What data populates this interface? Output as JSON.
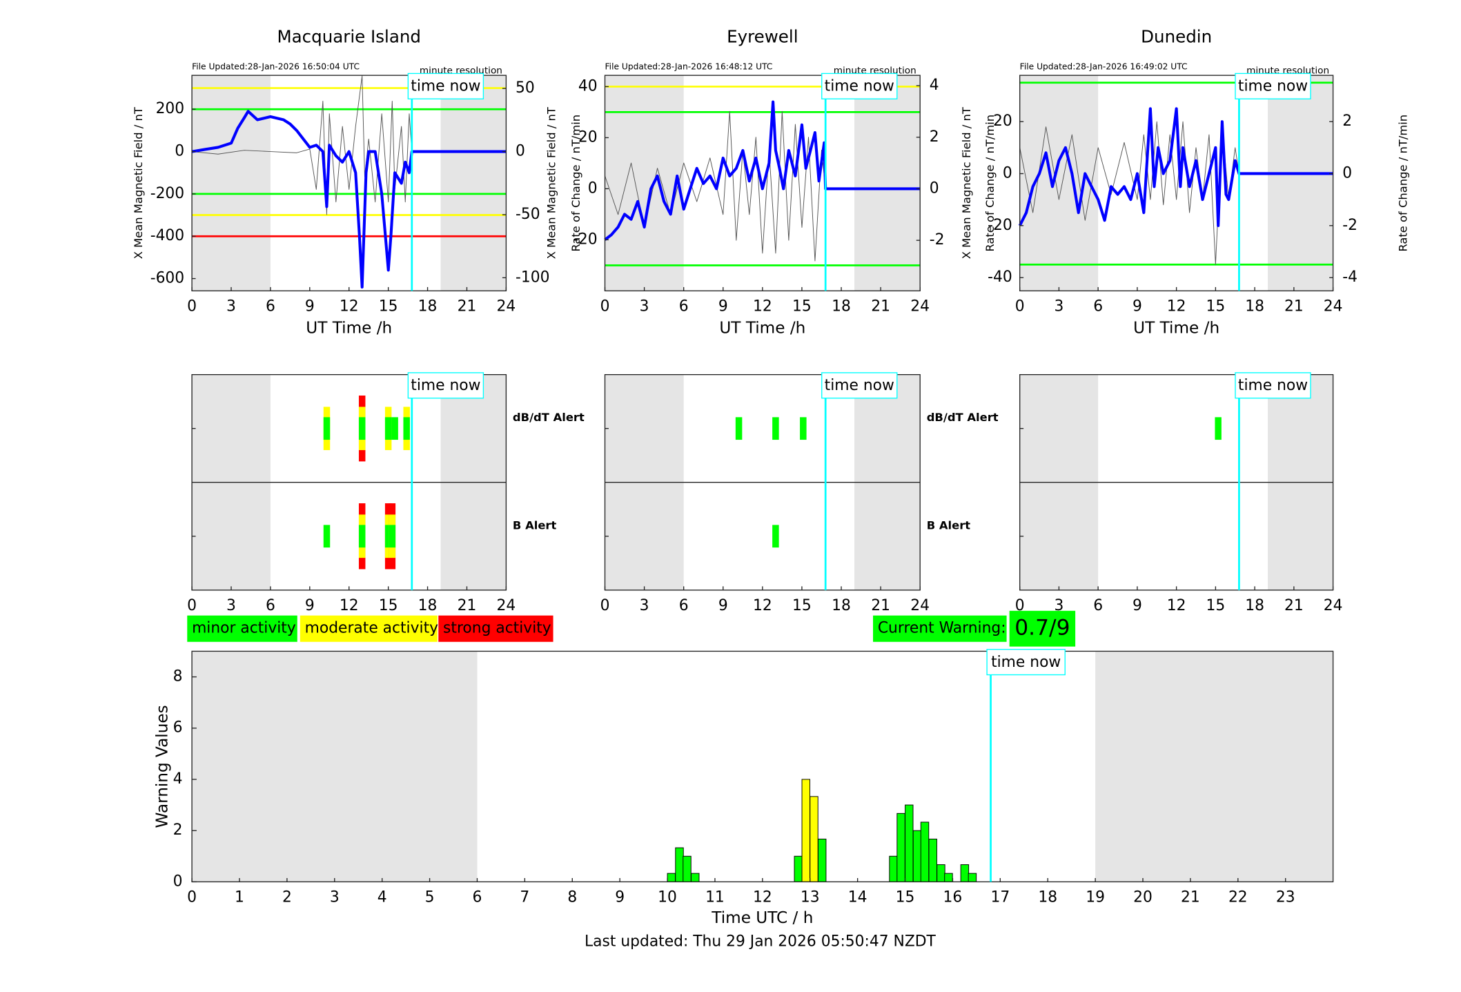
{
  "chart_data": [
    {
      "type": "line",
      "title": "Macquarie Island",
      "file_updated": "File Updated:28-Jan-2026 16:50:04 UTC",
      "resolution": "minute resolution",
      "xlabel": "UT Time /h",
      "ylabel": "X Mean Magnetic Field / nT",
      "y2label": "Rate of Change / nT/min",
      "xlim": [
        0,
        24
      ],
      "xticks": [
        0,
        3,
        6,
        9,
        12,
        15,
        18,
        21,
        24
      ],
      "ylim": [
        -658,
        360
      ],
      "yticks": [
        -600,
        -400,
        -200,
        0,
        200
      ],
      "y2lim": [
        -110.4,
        60.4
      ],
      "y2ticks": [
        -100,
        -50,
        0,
        50
      ],
      "shade": [
        [
          0,
          6
        ],
        [
          19,
          24
        ]
      ],
      "time_now": 16.8,
      "time_now_label": "time now",
      "thresholds": [
        {
          "value": 300,
          "color": "#ffff00"
        },
        {
          "value": -300,
          "color": "#ffff00"
        },
        {
          "value": 200,
          "color": "#00ff00"
        },
        {
          "value": -200,
          "color": "#00ff00"
        },
        {
          "value": -400,
          "color": "#ff0000"
        }
      ],
      "series": [
        {
          "axis": "y2",
          "color": "#555555",
          "x": [
            0,
            2,
            4,
            6,
            8,
            9,
            9.5,
            10,
            10.3,
            10.5,
            11,
            11.5,
            12,
            12.5,
            13,
            13.2,
            13.5,
            14,
            14.5,
            15,
            15.3,
            15.5,
            16,
            16.3,
            16.6,
            16.8
          ],
          "values": [
            0,
            -2,
            1,
            0,
            -1,
            2,
            -30,
            40,
            -50,
            30,
            -40,
            20,
            -30,
            20,
            60,
            -20,
            10,
            -40,
            30,
            -40,
            40,
            -30,
            20,
            -40,
            30,
            0
          ]
        },
        {
          "axis": "y",
          "color": "#0000ff",
          "x": [
            0,
            1,
            2,
            3,
            3.5,
            4,
            4.3,
            5,
            6,
            7,
            7.5,
            8,
            9,
            9.5,
            10,
            10.3,
            10.5,
            11,
            11.5,
            12,
            12.5,
            12.8,
            13,
            13.3,
            13.5,
            14,
            14.5,
            15,
            15.2,
            15.5,
            16,
            16.3,
            16.6,
            16.8,
            24
          ],
          "values": [
            0,
            10,
            20,
            40,
            110,
            160,
            190,
            150,
            165,
            150,
            130,
            100,
            20,
            30,
            0,
            -260,
            30,
            -20,
            -50,
            0,
            -100,
            -400,
            -640,
            -100,
            0,
            0,
            -200,
            -560,
            -400,
            -100,
            -150,
            -50,
            -100,
            0,
            0
          ]
        }
      ]
    },
    {
      "type": "line",
      "title": "Eyrewell",
      "file_updated": "File Updated:28-Jan-2026 16:48:12 UTC",
      "resolution": "minute resolution",
      "xlabel": "UT Time /h",
      "ylabel": "X Mean Magnetic Field / nT",
      "y2label": "Rate of Change / nT/min",
      "xlim": [
        0,
        24
      ],
      "xticks": [
        0,
        3,
        6,
        9,
        12,
        15,
        18,
        21,
        24
      ],
      "ylim": [
        -40,
        44.4
      ],
      "yticks": [
        -20,
        0,
        20,
        40
      ],
      "y2lim": [
        -3.96,
        4.4
      ],
      "y2ticks": [
        -2,
        0,
        2,
        4
      ],
      "shade": [
        [
          0,
          6
        ],
        [
          19,
          24
        ]
      ],
      "time_now": 16.8,
      "time_now_label": "time now",
      "thresholds": [
        {
          "value": 40,
          "color": "#ffff00"
        },
        {
          "value": 30,
          "color": "#00ff00"
        },
        {
          "value": -30,
          "color": "#00ff00"
        }
      ],
      "series": [
        {
          "axis": "y2",
          "color": "#555555",
          "x": [
            0,
            1,
            2,
            3,
            4,
            5,
            6,
            7,
            8,
            9,
            9.5,
            10,
            10.5,
            11,
            11.5,
            12,
            12.5,
            13,
            13.5,
            14,
            14.5,
            15,
            15.5,
            16,
            16.5,
            16.8
          ],
          "values": [
            0.5,
            -1,
            1,
            -1.5,
            0.8,
            -1,
            1,
            -0.5,
            1.2,
            -1,
            3,
            -2,
            1.5,
            -1,
            2,
            -2.5,
            1.5,
            -2.5,
            3,
            -2,
            2.5,
            -1.5,
            2,
            -2.8,
            1.5,
            0
          ]
        },
        {
          "axis": "y",
          "color": "#0000ff",
          "x": [
            0,
            0.5,
            1,
            1.5,
            2,
            2.5,
            3,
            3.5,
            4,
            4.5,
            5,
            5.5,
            6,
            6.5,
            7,
            7.5,
            8,
            8.5,
            9,
            9.5,
            10,
            10.5,
            11,
            11.5,
            12,
            12.5,
            12.8,
            13,
            13.3,
            13.6,
            14,
            14.5,
            15,
            15.3,
            15.6,
            16,
            16.3,
            16.7,
            16.8,
            24
          ],
          "values": [
            -20,
            -18,
            -15,
            -10,
            -12,
            -5,
            -15,
            0,
            5,
            -5,
            -10,
            5,
            -8,
            0,
            8,
            2,
            5,
            0,
            12,
            5,
            8,
            15,
            3,
            12,
            0,
            10,
            34,
            15,
            8,
            0,
            15,
            5,
            25,
            8,
            14,
            22,
            3,
            18,
            0,
            0
          ]
        }
      ]
    },
    {
      "type": "line",
      "title": "Dunedin",
      "file_updated": "File Updated:28-Jan-2026 16:49:02 UTC",
      "resolution": "minute resolution",
      "xlabel": "UT Time /h",
      "ylabel": "X Mean Magnetic Field / nT",
      "y2label": "Rate of Change / nT/min",
      "xlim": [
        0,
        24
      ],
      "xticks": [
        0,
        3,
        6,
        9,
        12,
        15,
        18,
        21,
        24
      ],
      "ylim": [
        -45.1,
        37.8
      ],
      "yticks": [
        -40,
        -20,
        0,
        20
      ],
      "y2lim": [
        -4.51,
        3.78
      ],
      "y2ticks": [
        -4,
        -2,
        0,
        2
      ],
      "shade": [
        [
          0,
          6
        ],
        [
          19,
          24
        ]
      ],
      "time_now": 16.8,
      "time_now_label": "time now",
      "thresholds": [
        {
          "value": 35,
          "color": "#00ff00"
        },
        {
          "value": -35,
          "color": "#00ff00"
        }
      ],
      "series": [
        {
          "axis": "y2",
          "color": "#555555",
          "x": [
            0,
            1,
            2,
            3,
            4,
            5,
            6,
            7,
            8,
            9,
            9.5,
            10,
            10.5,
            11,
            11.5,
            12,
            12.5,
            13,
            13.5,
            14,
            14.5,
            15,
            15.5,
            16,
            16.5,
            16.8
          ],
          "values": [
            1,
            -1.5,
            1.8,
            -1,
            1.5,
            -1.8,
            1,
            -0.8,
            1.2,
            -1,
            1.5,
            -1,
            2,
            -1.2,
            1.5,
            -1,
            2,
            -1.5,
            1,
            -1,
            1.5,
            -3.5,
            1.8,
            -1,
            1,
            0
          ]
        },
        {
          "axis": "y",
          "color": "#0000ff",
          "x": [
            0,
            0.5,
            1,
            1.5,
            2,
            2.5,
            3,
            3.5,
            4,
            4.5,
            5,
            5.5,
            6,
            6.5,
            7,
            7.5,
            8,
            8.5,
            9,
            9.5,
            10,
            10.3,
            10.6,
            11,
            11.5,
            12,
            12.3,
            12.5,
            13,
            13.5,
            14,
            14.5,
            15,
            15.2,
            15.5,
            15.8,
            16,
            16.5,
            16.8,
            24
          ],
          "values": [
            -20,
            -15,
            -5,
            0,
            8,
            -5,
            5,
            10,
            0,
            -15,
            0,
            -5,
            -10,
            -18,
            -5,
            -8,
            -5,
            -10,
            0,
            -15,
            25,
            -5,
            10,
            0,
            5,
            25,
            -5,
            10,
            -5,
            5,
            -10,
            0,
            10,
            -20,
            20,
            -8,
            -10,
            5,
            0,
            0
          ]
        }
      ]
    },
    {
      "type": "alert",
      "xlim": [
        0,
        24
      ],
      "xticks": [
        0,
        3,
        6,
        9,
        12,
        15,
        18,
        21,
        24
      ],
      "shade": [
        [
          0,
          6
        ],
        [
          19,
          24
        ]
      ],
      "time_now": 16.8,
      "time_now_label": "time now",
      "rows": [
        {
          "name": "dB/dT Alert",
          "color": "#000000",
          "events": [
            {
              "x": 10.3,
              "level": 2
            },
            {
              "x": 13,
              "level": 3
            },
            {
              "x": 15,
              "level": 2
            },
            {
              "x": 15.5,
              "level": 1
            },
            {
              "x": 16.4,
              "level": 2
            }
          ]
        },
        {
          "name": "B Alert",
          "color": "#0000ff",
          "events": [
            {
              "x": 10.3,
              "level": 1
            },
            {
              "x": 13,
              "level": 3
            },
            {
              "x": 15,
              "level": 3
            },
            {
              "x": 15.3,
              "level": 3
            }
          ]
        }
      ]
    },
    {
      "type": "alert",
      "xlim": [
        0,
        24
      ],
      "xticks": [
        0,
        3,
        6,
        9,
        12,
        15,
        18,
        21,
        24
      ],
      "shade": [
        [
          0,
          6
        ],
        [
          19,
          24
        ]
      ],
      "time_now": 16.8,
      "time_now_label": "time now",
      "rows": [
        {
          "name": "dB/dT Alert",
          "color": "#000000",
          "events": [
            {
              "x": 10.2,
              "level": 1
            },
            {
              "x": 13,
              "level": 1
            },
            {
              "x": 15.1,
              "level": 1
            }
          ]
        },
        {
          "name": "B Alert",
          "color": "#0000ff",
          "events": [
            {
              "x": 13,
              "level": 1
            }
          ]
        }
      ]
    },
    {
      "type": "alert",
      "xlim": [
        0,
        24
      ],
      "xticks": [
        0,
        3,
        6,
        9,
        12,
        15,
        18,
        21,
        24
      ],
      "shade": [
        [
          0,
          6
        ],
        [
          19,
          24
        ]
      ],
      "time_now": 16.8,
      "time_now_label": "time now",
      "rows": [
        {
          "events": [
            {
              "x": 15.2,
              "level": 1
            }
          ]
        },
        {
          "events": []
        }
      ]
    },
    {
      "type": "bar",
      "xlabel": "Time UTC / h",
      "ylabel": "Warning Values",
      "xlim": [
        0,
        24
      ],
      "xticks": [
        0,
        1,
        2,
        3,
        4,
        5,
        6,
        7,
        8,
        9,
        10,
        11,
        12,
        13,
        14,
        15,
        16,
        17,
        18,
        19,
        20,
        21,
        22,
        23
      ],
      "ylim": [
        0,
        9
      ],
      "yticks": [
        0,
        2,
        4,
        6,
        8
      ],
      "shade": [
        [
          0,
          6
        ],
        [
          19,
          24
        ]
      ],
      "time_now": 16.8,
      "time_now_label": "time now",
      "x": [
        10,
        10.17,
        10.33,
        10.5,
        12.67,
        12.83,
        13,
        13.17,
        14.67,
        14.83,
        15,
        15.17,
        15.33,
        15.5,
        15.67,
        15.83,
        16.17,
        16.33
      ],
      "values": [
        0.33,
        1.33,
        1,
        0.33,
        1,
        4,
        3.33,
        1.67,
        1,
        2.67,
        3,
        2,
        2.33,
        1.67,
        0.67,
        0.33,
        0.67,
        0.33
      ],
      "colors": [
        "#00ff00",
        "#00ff00",
        "#00ff00",
        "#00ff00",
        "#00ff00",
        "#ffff00",
        "#ffff00",
        "#00ff00",
        "#00ff00",
        "#00ff00",
        "#00ff00",
        "#00ff00",
        "#00ff00",
        "#00ff00",
        "#00ff00",
        "#00ff00",
        "#00ff00",
        "#00ff00"
      ],
      "legend": [
        {
          "name": "minor activity",
          "color": "#00ff00"
        },
        {
          "name": "moderate activity",
          "color": "#ffff00"
        },
        {
          "name": "strong activity",
          "color": "#ff0000"
        }
      ],
      "current_warning": {
        "label": "Current Warning:",
        "value": "0.7/9",
        "color": "#00ff00"
      },
      "footer": "Last updated: Thu 29 Jan 2026 05:50:47 NZDT"
    }
  ]
}
